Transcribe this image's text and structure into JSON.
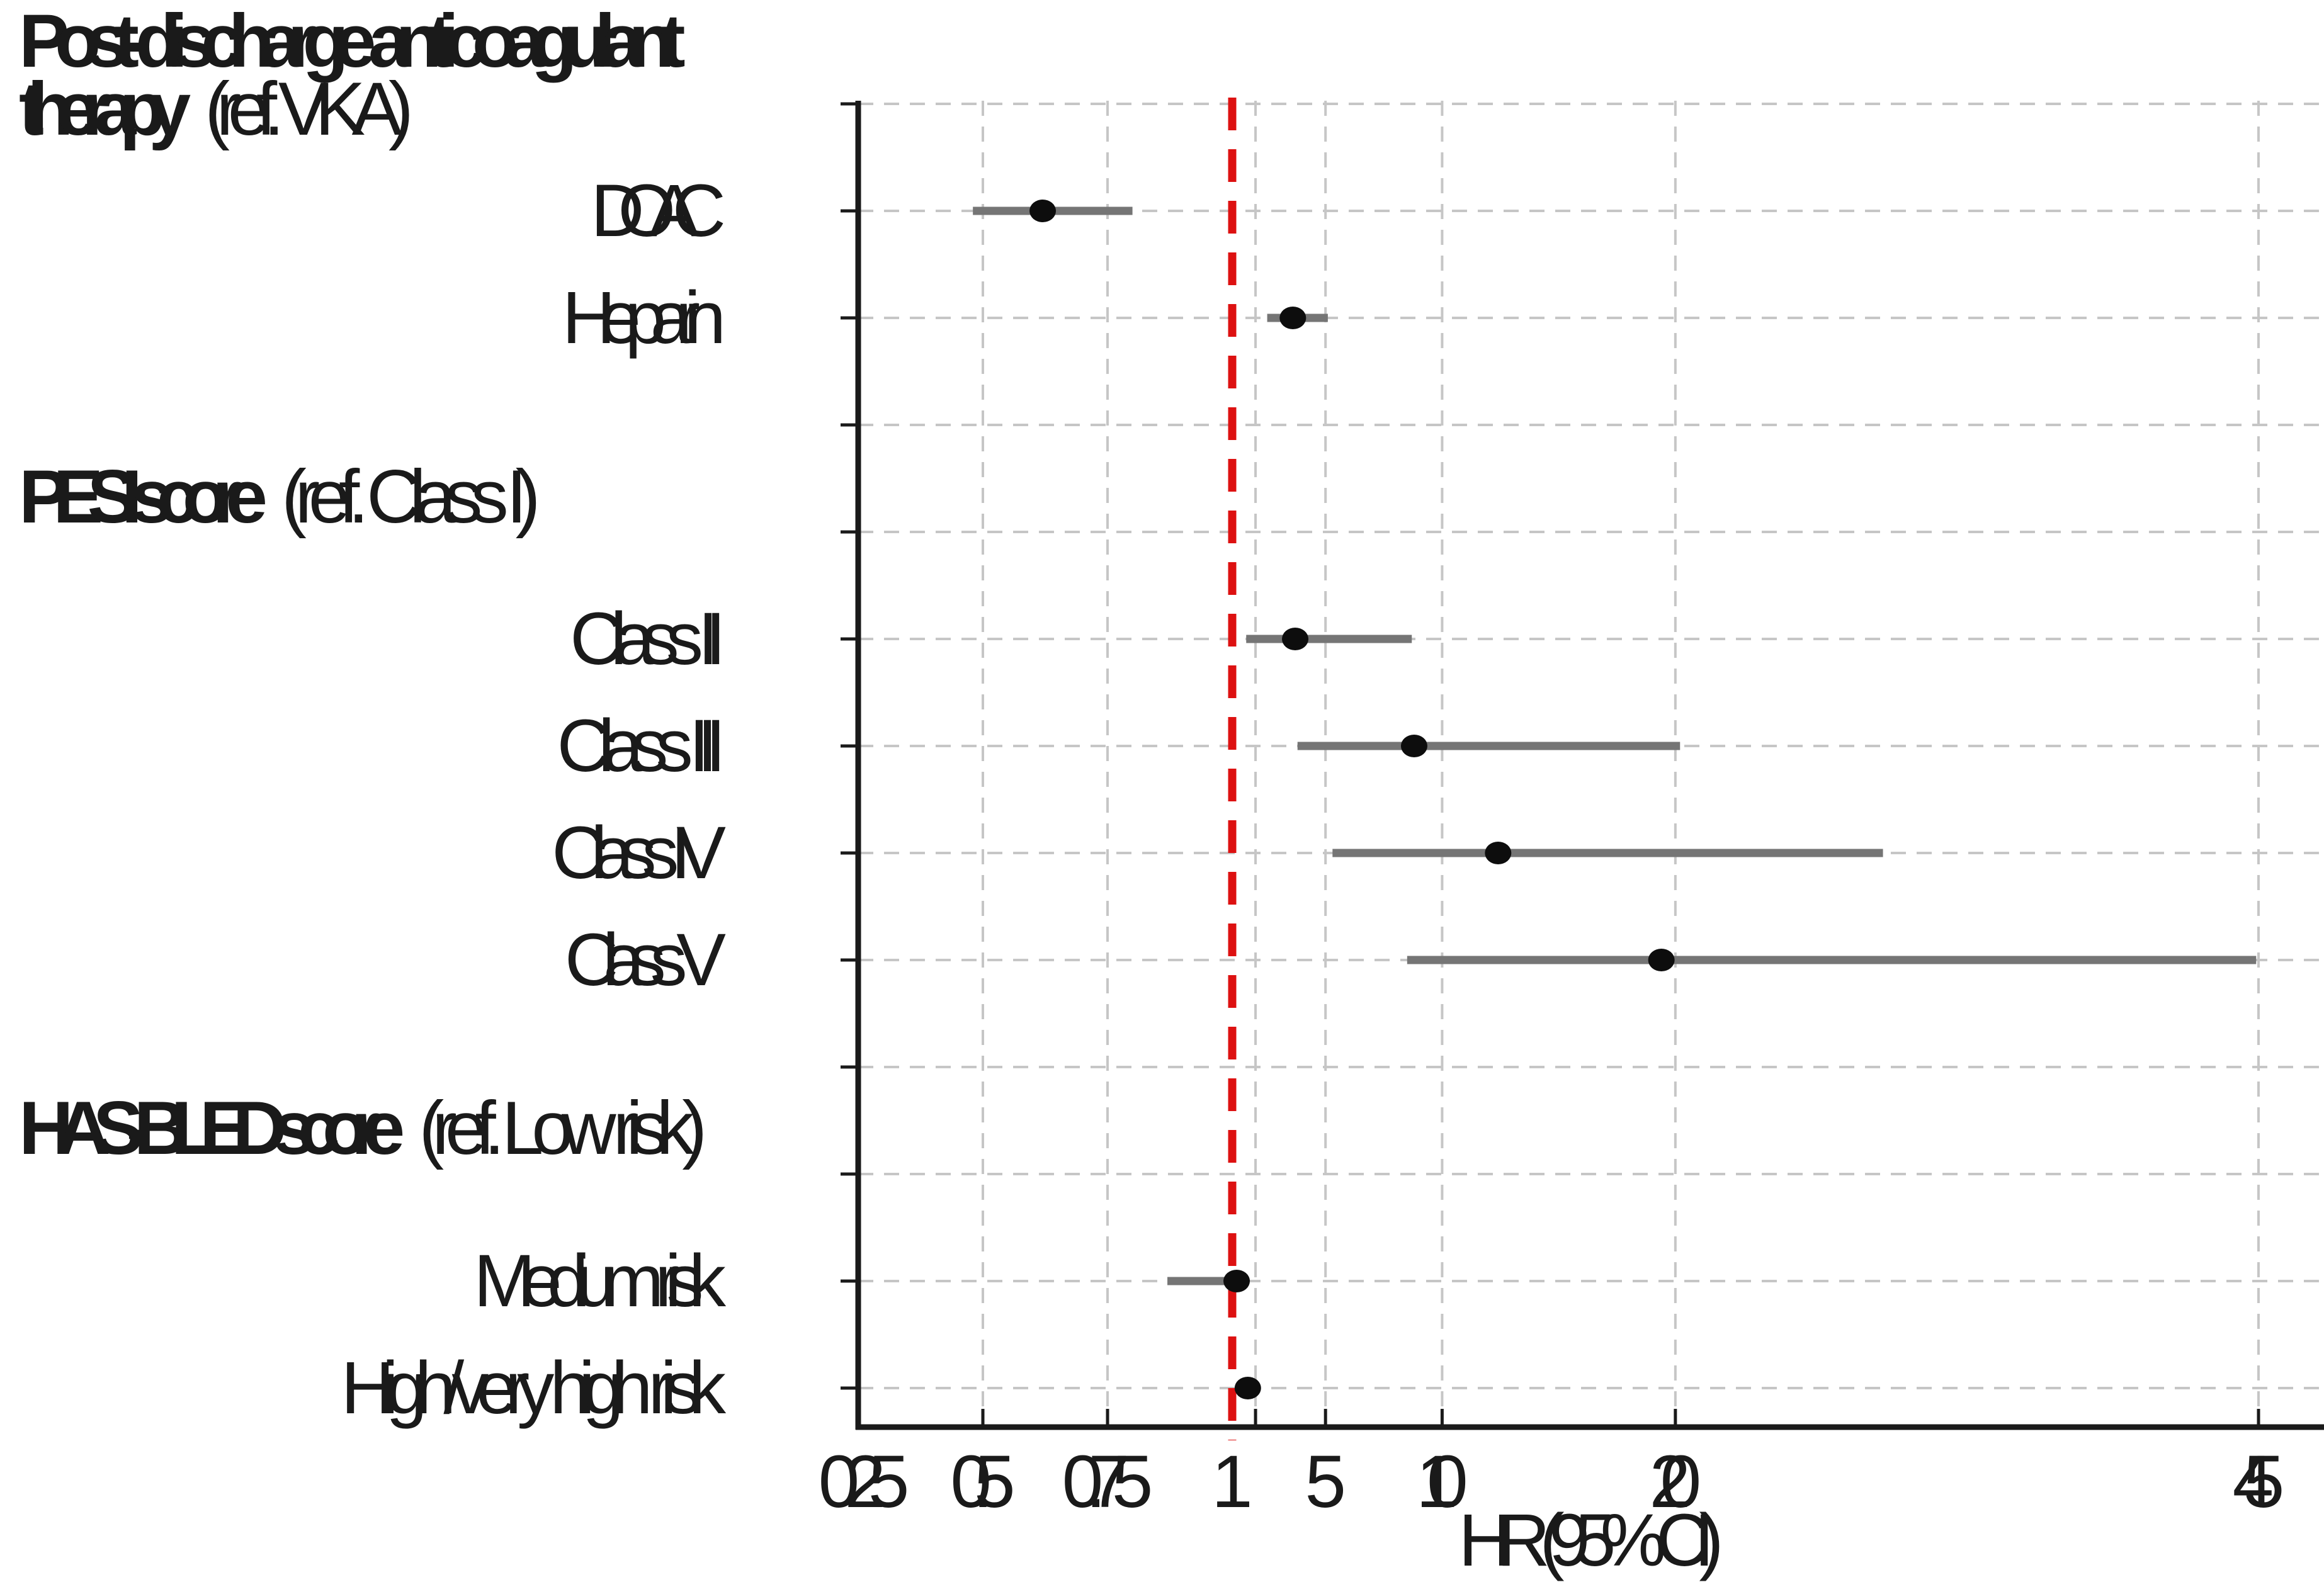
{
  "chart_data": {
    "type": "scatter",
    "subtype": "forest-plot-dot-and-ci",
    "title": "",
    "xlabel": "HR (95% CI)",
    "ylabel": "",
    "x_axis": {
      "scale": "piecewise-linear",
      "segment_breaks": [
        0.25,
        1,
        45
      ],
      "ticks": [
        {
          "value": 0.25,
          "label": "0.25"
        },
        {
          "value": 0.5,
          "label": "0.5"
        },
        {
          "value": 0.75,
          "label": "0.75"
        },
        {
          "value": 1,
          "label": "1"
        },
        {
          "value": 5,
          "label": "5"
        },
        {
          "value": 10,
          "label": "10"
        },
        {
          "value": 20,
          "label": "20"
        },
        {
          "value": 45,
          "label": "45"
        }
      ],
      "unlabeled_tick_values": [
        2
      ],
      "reference_line_value": 1,
      "grid": true
    },
    "groups": [
      {
        "header_lines": [
          {
            "bold": "Post-discharge anticoagulant",
            "rest": ""
          },
          {
            "bold": "therapy",
            "rest": "(ref. VKA)"
          }
        ],
        "rows": [
          {
            "label": "DOAC",
            "hr": 0.62,
            "ci_low": 0.48,
            "ci_high": 0.8
          },
          {
            "label": "Heparin",
            "hr": 3.6,
            "ci_low": 2.5,
            "ci_high": 5.1
          }
        ]
      },
      {
        "header_lines": [
          {
            "bold": "PESI score",
            "rest": "(ref. Class I)"
          }
        ],
        "rows": [
          {
            "label": "Class II",
            "hr": 3.7,
            "ci_low": 1.6,
            "ci_high": 8.7
          },
          {
            "label": "Class III",
            "hr": 8.8,
            "ci_low": 3.8,
            "ci_high": 20.2
          },
          {
            "label": "Class IV",
            "hr": 12.4,
            "ci_low": 5.3,
            "ci_high": 28.9
          },
          {
            "label": "Class V",
            "hr": 19.4,
            "ci_low": 8.5,
            "ci_high": 44.9
          }
        ]
      },
      {
        "header_lines": [
          {
            "bold": "HAS-BLED score",
            "rest": "(ref. Low risk)"
          }
        ],
        "rows": [
          {
            "label": "Medium risk",
            "hr": 1.19,
            "ci_low": 0.87,
            "ci_high": 1.6
          },
          {
            "label": "High/very high risk",
            "hr": 1.67,
            "ci_low": 1.3,
            "ci_high": 2.2
          }
        ]
      }
    ],
    "legend": null,
    "colors": {
      "marker": "#0d0d0d",
      "ci_bar": "#757575",
      "reference_line": "#dd1111",
      "gridline": "#c6c6c6",
      "axis": "#1a1a1a",
      "text": "#1a1a1a",
      "background": "#ffffff"
    }
  }
}
